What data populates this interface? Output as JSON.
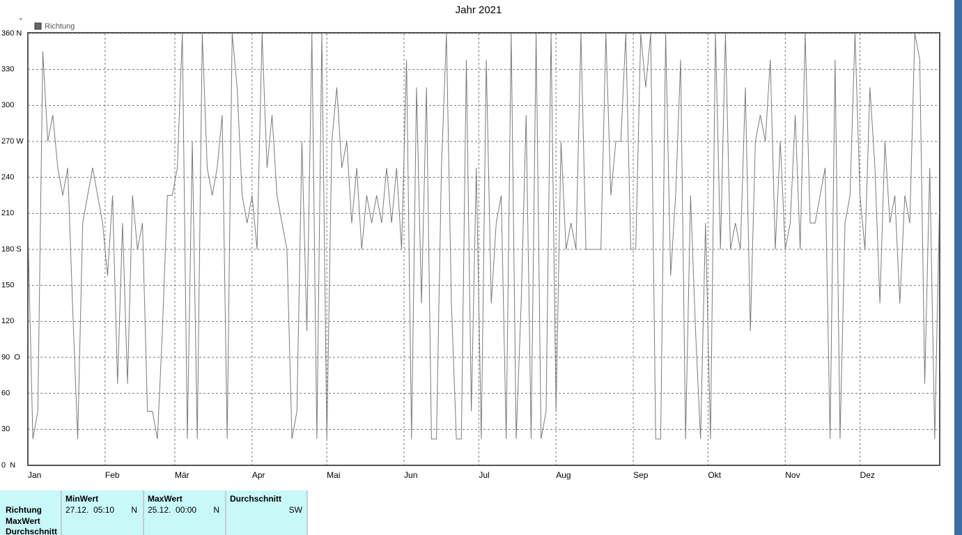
{
  "chart_data": {
    "type": "line",
    "title": "Jahr 2021",
    "unit": "°",
    "legend": "top-left",
    "series": [
      {
        "name": "Richtung",
        "color": "#7a7a7a",
        "x": [
          0,
          2,
          4,
          6,
          8,
          10,
          12,
          14,
          16,
          18,
          20,
          22,
          24,
          26,
          28,
          30,
          32,
          34,
          36,
          38,
          40,
          42,
          44,
          46,
          48,
          50,
          52,
          54,
          56,
          58,
          60,
          62,
          64,
          66,
          68,
          70,
          72,
          74,
          76,
          78,
          80,
          82,
          84,
          86,
          88,
          90,
          92,
          94,
          96,
          98,
          100,
          102,
          104,
          106,
          108,
          110,
          112,
          114,
          116,
          118,
          120,
          122,
          124,
          126,
          128,
          130,
          132,
          134,
          136,
          138,
          140,
          142,
          144,
          146,
          148,
          150,
          152,
          154,
          156,
          158,
          160,
          162,
          164,
          166,
          168,
          170,
          172,
          174,
          176,
          178,
          180,
          182,
          184,
          186,
          188,
          190,
          192,
          194,
          196,
          198,
          200,
          202,
          204,
          206,
          208,
          210,
          212,
          214,
          216,
          218,
          220,
          222,
          224,
          226,
          228,
          230,
          232,
          234,
          236,
          238,
          240,
          242,
          244,
          246,
          248,
          250,
          252,
          254,
          256,
          258,
          260,
          262,
          264,
          266,
          268,
          270,
          272,
          274,
          276,
          278,
          280,
          282,
          284,
          286,
          288,
          290,
          292,
          294,
          296,
          298,
          300,
          302,
          304,
          306,
          308,
          310,
          312,
          314,
          316,
          318,
          320,
          322,
          324,
          326,
          328,
          330,
          332,
          334,
          336,
          338,
          340,
          342,
          344,
          346,
          348,
          350,
          352,
          354,
          356,
          358,
          360,
          362,
          364,
          366
        ],
        "values": [
          200,
          22,
          45,
          345,
          270,
          292,
          248,
          225,
          248,
          130,
          22,
          202,
          225,
          248,
          225,
          202,
          158,
          225,
          68,
          202,
          68,
          225,
          180,
          202,
          45,
          45,
          22,
          112,
          225,
          225,
          248,
          360,
          22,
          270,
          22,
          360,
          248,
          225,
          248,
          292,
          22,
          360,
          315,
          225,
          202,
          225,
          180,
          360,
          248,
          292,
          225,
          202,
          180,
          22,
          45,
          270,
          112,
          360,
          22,
          360,
          22,
          270,
          315,
          248,
          270,
          202,
          248,
          180,
          225,
          202,
          225,
          202,
          248,
          202,
          248,
          180,
          338,
          22,
          315,
          135,
          315,
          22,
          22,
          248,
          360,
          135,
          22,
          22,
          338,
          45,
          248,
          22,
          338,
          135,
          202,
          225,
          22,
          360,
          22,
          135,
          292,
          22,
          360,
          22,
          45,
          360,
          45,
          270,
          180,
          202,
          180,
          360,
          180,
          180,
          180,
          180,
          360,
          225,
          270,
          270,
          360,
          180,
          180,
          360,
          315,
          360,
          22,
          22,
          360,
          158,
          225,
          338,
          22,
          225,
          112,
          22,
          202,
          22,
          360,
          180,
          360,
          180,
          202,
          180,
          315,
          112,
          270,
          292,
          270,
          338,
          180,
          270,
          180,
          202,
          292,
          180,
          360,
          202,
          202,
          225,
          248,
          22,
          338,
          22,
          202,
          225,
          360,
          225,
          180,
          315,
          248,
          135,
          270,
          202,
          225,
          135,
          225,
          202,
          360,
          338,
          68,
          248,
          22,
          225
        ]
      }
    ],
    "xlim": [
      0,
      366
    ],
    "xticks": [
      {
        "value": 0,
        "label": "Jan"
      },
      {
        "value": 31,
        "label": "Feb"
      },
      {
        "value": 59,
        "label": "Mär"
      },
      {
        "value": 90,
        "label": "Apr"
      },
      {
        "value": 120,
        "label": "Mai"
      },
      {
        "value": 151,
        "label": "Jun"
      },
      {
        "value": 181,
        "label": "Jul"
      },
      {
        "value": 212,
        "label": "Aug"
      },
      {
        "value": 243,
        "label": "Sep"
      },
      {
        "value": 273,
        "label": "Okt"
      },
      {
        "value": 304,
        "label": "Nov"
      },
      {
        "value": 334,
        "label": "Dez"
      }
    ],
    "ylim": [
      0,
      360
    ],
    "yticks": [
      {
        "value": 0,
        "label": "0  N"
      },
      30,
      60,
      {
        "value": 90,
        "label": "90  O"
      },
      120,
      150,
      {
        "value": 180,
        "label": "180 S"
      },
      210,
      240,
      {
        "value": 270,
        "label": "270 W"
      },
      300,
      330,
      {
        "value": 360,
        "label": "360 N"
      }
    ],
    "grid": true
  },
  "table": {
    "headers": [
      "MinWert",
      "MaxWert",
      "Durchschnitt"
    ],
    "row_labels": [
      "Richtung",
      "MaxWert",
      "Durchschnitt"
    ],
    "cells": [
      [
        "27.12.  05:10",
        "N"
      ],
      [
        "25.12.  00:00",
        "N"
      ],
      [
        "SW"
      ]
    ]
  }
}
